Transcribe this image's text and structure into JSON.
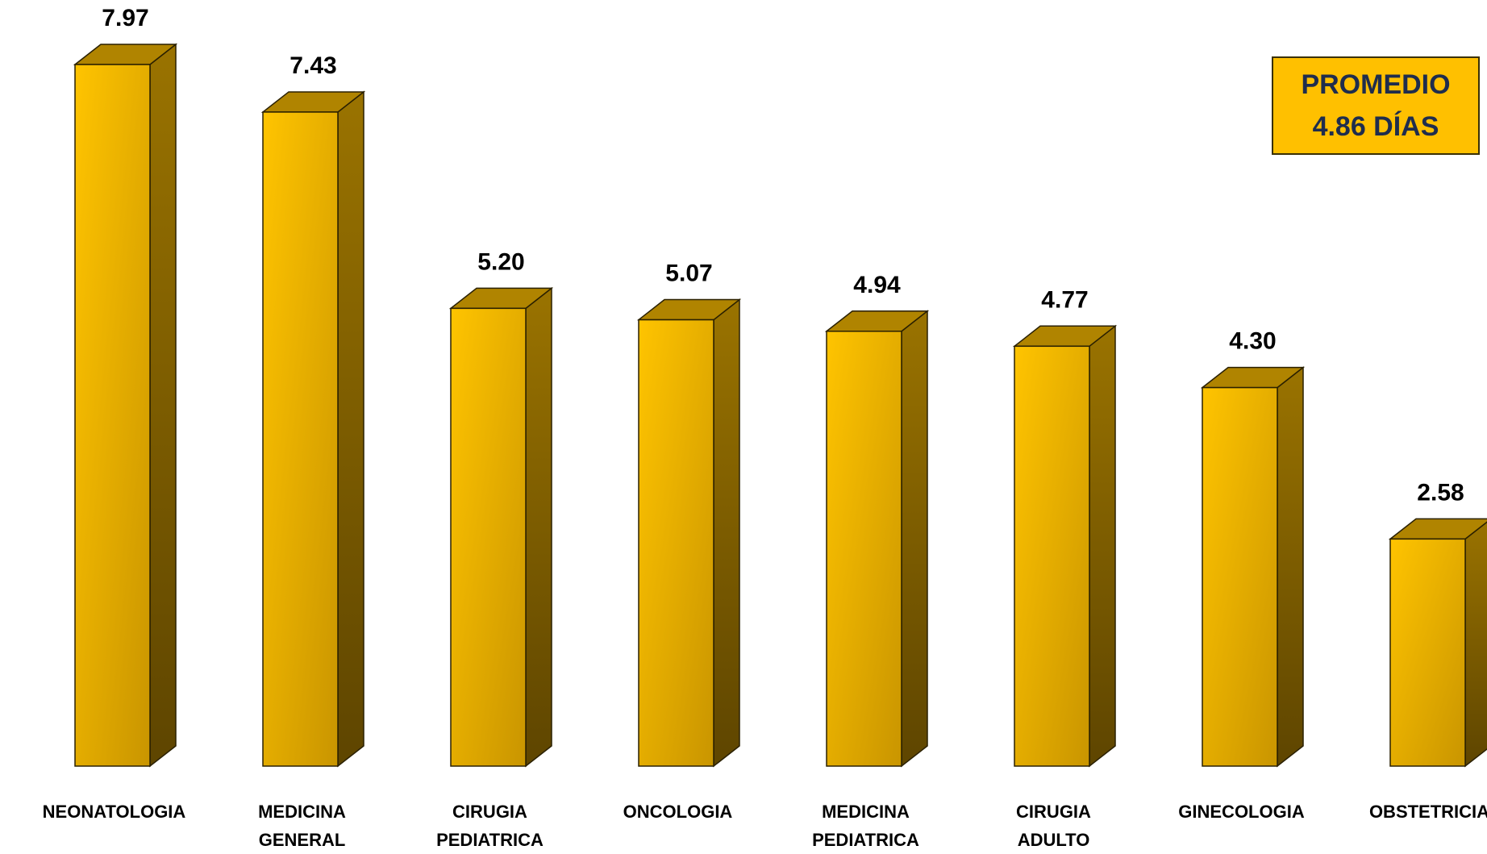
{
  "chart_data": {
    "type": "bar",
    "style": "3d-column",
    "categories": [
      [
        "NEONATOLOGIA"
      ],
      [
        "MEDICINA",
        "GENERAL"
      ],
      [
        "CIRUGIA",
        "PEDIATRICA"
      ],
      [
        "ONCOLOGIA"
      ],
      [
        "MEDICINA",
        "PEDIATRICA"
      ],
      [
        "CIRUGIA",
        "ADULTO"
      ],
      [
        "GINECOLOGIA"
      ],
      [
        "OBSTETRICIA"
      ]
    ],
    "values": [
      7.97,
      7.43,
      5.2,
      5.07,
      4.94,
      4.77,
      4.3,
      2.58
    ],
    "value_labels": [
      "7.97",
      "7.43",
      "5.20",
      "5.07",
      "4.94",
      "4.77",
      "4.30",
      "2.58"
    ],
    "ylim": [
      0,
      7.97
    ],
    "grid": false,
    "colors": {
      "bar_front": "#ffc000",
      "bar_front_dark": "#d49a00",
      "bar_side": "#7a5a00",
      "bar_top": "#b08400",
      "outline": "#2a2000"
    }
  },
  "average_box": {
    "line1": "PROMEDIO",
    "line2": "4.86 DÍAS",
    "background": "#ffc000",
    "text_color": "#1f2d4d"
  }
}
